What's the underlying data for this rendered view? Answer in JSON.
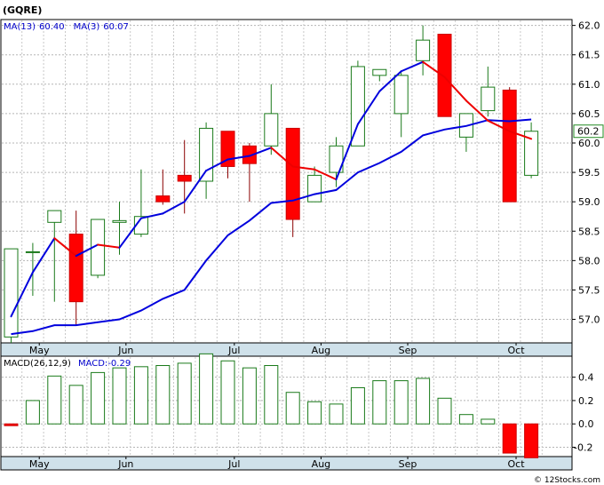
{
  "chart_data": [
    {
      "type": "candlestick",
      "title": "(GQRE)",
      "legend": [
        {
          "label": "MA(13)",
          "value": "60.40",
          "color": "#0000cc"
        },
        {
          "label": "MA(3)",
          "value": "60.07",
          "color": "#0000cc"
        }
      ],
      "last_price_label": "60.2",
      "ylim": [
        56.6,
        62.1
      ],
      "y_ticks": [
        57.0,
        57.5,
        58.0,
        58.5,
        59.0,
        59.5,
        60.0,
        60.5,
        61.0,
        61.5,
        62.0
      ],
      "x_tick_labels": [
        {
          "label": "May",
          "index": 1.3
        },
        {
          "label": "Jun",
          "index": 5.3
        },
        {
          "label": "Jul",
          "index": 10.3
        },
        {
          "label": "Aug",
          "index": 14.3
        },
        {
          "label": "Sep",
          "index": 18.3
        },
        {
          "label": "Oct",
          "index": 23.3
        }
      ],
      "candles": [
        {
          "open": 56.7,
          "high": 58.2,
          "low": 56.6,
          "close": 58.2
        },
        {
          "open": 58.15,
          "high": 58.3,
          "low": 57.4,
          "close": 58.15
        },
        {
          "open": 58.65,
          "high": 58.85,
          "low": 57.3,
          "close": 58.85
        },
        {
          "open": 58.45,
          "high": 58.85,
          "low": 56.9,
          "close": 57.3
        },
        {
          "open": 57.75,
          "high": 58.7,
          "low": 57.7,
          "close": 58.7
        },
        {
          "open": 58.65,
          "high": 59.0,
          "low": 58.1,
          "close": 58.68
        },
        {
          "open": 58.45,
          "high": 59.55,
          "low": 58.4,
          "close": 58.75
        },
        {
          "open": 59.1,
          "high": 59.55,
          "low": 58.95,
          "close": 59.0
        },
        {
          "open": 59.45,
          "high": 60.05,
          "low": 58.8,
          "close": 59.35
        },
        {
          "open": 59.35,
          "high": 60.35,
          "low": 59.05,
          "close": 60.25
        },
        {
          "open": 60.2,
          "high": 60.2,
          "low": 59.4,
          "close": 59.6
        },
        {
          "open": 59.95,
          "high": 60.0,
          "low": 59.0,
          "close": 59.65
        },
        {
          "open": 59.95,
          "high": 61.0,
          "low": 59.8,
          "close": 60.5
        },
        {
          "open": 60.25,
          "high": 60.25,
          "low": 58.4,
          "close": 58.7
        },
        {
          "open": 59.0,
          "high": 59.6,
          "low": 59.0,
          "close": 59.45
        },
        {
          "open": 59.5,
          "high": 60.1,
          "low": 59.25,
          "close": 59.95
        },
        {
          "open": 59.95,
          "high": 61.4,
          "low": 59.95,
          "close": 61.3
        },
        {
          "open": 61.15,
          "high": 61.25,
          "low": 61.05,
          "close": 61.25
        },
        {
          "open": 60.5,
          "high": 61.2,
          "low": 60.1,
          "close": 61.15
        },
        {
          "open": 61.4,
          "high": 62.0,
          "low": 61.15,
          "close": 61.75
        },
        {
          "open": 61.85,
          "high": 61.85,
          "low": 60.45,
          "close": 60.45
        },
        {
          "open": 60.1,
          "high": 60.5,
          "low": 59.85,
          "close": 60.5
        },
        {
          "open": 60.55,
          "high": 61.3,
          "low": 60.45,
          "close": 60.95
        },
        {
          "open": 60.9,
          "high": 60.95,
          "low": 59.0,
          "close": 59.0
        },
        {
          "open": 59.45,
          "high": 60.35,
          "low": 59.4,
          "close": 60.2
        }
      ],
      "ma13": [
        [
          0,
          56.75
        ],
        [
          1,
          56.8
        ],
        [
          2,
          56.9
        ],
        [
          3,
          56.9
        ],
        [
          4,
          56.95
        ],
        [
          5,
          57.0
        ],
        [
          6,
          57.15
        ],
        [
          7,
          57.35
        ],
        [
          8,
          57.5
        ],
        [
          9,
          58.0
        ],
        [
          10,
          58.43
        ],
        [
          11,
          58.68
        ],
        [
          12,
          58.98
        ],
        [
          13,
          59.02
        ],
        [
          14,
          59.13
        ],
        [
          15,
          59.2
        ],
        [
          16,
          59.5
        ],
        [
          17,
          59.66
        ],
        [
          18,
          59.85
        ],
        [
          19,
          60.13
        ],
        [
          20,
          60.23
        ],
        [
          21,
          60.29
        ],
        [
          22,
          60.39
        ],
        [
          23,
          60.37
        ],
        [
          24,
          60.4
        ]
      ],
      "ma3": [
        [
          0,
          57.05
        ],
        [
          1,
          57.8
        ],
        [
          2,
          58.38
        ],
        [
          3,
          58.08
        ],
        [
          4,
          58.27
        ],
        [
          5,
          58.22
        ],
        [
          6,
          58.72
        ],
        [
          7,
          58.8
        ],
        [
          8,
          59.0
        ],
        [
          9,
          59.53
        ],
        [
          10,
          59.72
        ],
        [
          11,
          59.78
        ],
        [
          12,
          59.92
        ],
        [
          13,
          59.6
        ],
        [
          14,
          59.55
        ],
        [
          15,
          59.38
        ],
        [
          16,
          60.32
        ],
        [
          17,
          60.88
        ],
        [
          18,
          61.22
        ],
        [
          19,
          61.38
        ],
        [
          20,
          61.12
        ],
        [
          21,
          60.72
        ],
        [
          22,
          60.38
        ],
        [
          23,
          60.2
        ],
        [
          24,
          60.07
        ]
      ]
    },
    {
      "type": "bar",
      "title": "MACD(26,12,9)",
      "legend": [
        {
          "label": "MACD:",
          "value": "-0.29",
          "color": "#0000cc"
        }
      ],
      "ylim": [
        -0.28,
        0.58
      ],
      "y_ticks": [
        0.4,
        0.2,
        0.0,
        -0.2
      ],
      "y_tick_labels": [
        "0.4",
        "0.2",
        "0.0",
        "-0.2"
      ],
      "x_tick_labels": [
        {
          "label": "May",
          "index": 1.3
        },
        {
          "label": "Jun",
          "index": 5.3
        },
        {
          "label": "Jul",
          "index": 10.3
        },
        {
          "label": "Aug",
          "index": 14.3
        },
        {
          "label": "Sep",
          "index": 18.3
        },
        {
          "label": "Oct",
          "index": 23.3
        }
      ],
      "values": [
        -0.01,
        0.2,
        0.41,
        0.33,
        0.44,
        0.48,
        0.49,
        0.5,
        0.52,
        0.6,
        0.54,
        0.48,
        0.5,
        0.27,
        0.19,
        0.17,
        0.31,
        0.37,
        0.37,
        0.39,
        0.22,
        0.08,
        0.04,
        -0.25,
        -0.29
      ]
    }
  ]
}
